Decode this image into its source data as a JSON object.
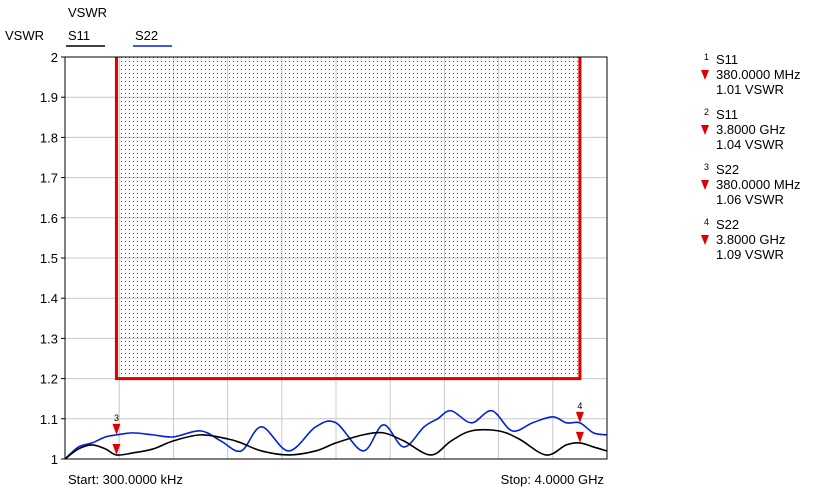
{
  "chart_data": {
    "type": "line",
    "title": "VSWR",
    "ylabel": "VSWR",
    "xlim_hz": [
      300000,
      4000000000
    ],
    "ylim": [
      1,
      2
    ],
    "yticks": [
      1,
      1.1,
      1.2,
      1.3,
      1.4,
      1.5,
      1.6,
      1.7,
      1.8,
      1.9,
      2
    ],
    "ytick_labels": [
      "1",
      "1.1",
      "1.2",
      "1.3",
      "1.4",
      "1.5",
      "1.6",
      "1.7",
      "1.8",
      "1.9",
      "2"
    ],
    "grid": true,
    "start_label": "Start: 300.0000 kHz",
    "stop_label": "Stop: 4.0000 GHz",
    "series": [
      {
        "name": "S11",
        "color": "#000000",
        "x_ghz": [
          0.0003,
          0.1,
          0.2,
          0.3,
          0.38,
          0.5,
          0.65,
          0.8,
          1.0,
          1.2,
          1.3,
          1.45,
          1.65,
          1.85,
          2.0,
          2.2,
          2.35,
          2.5,
          2.7,
          2.85,
          3.0,
          3.2,
          3.35,
          3.55,
          3.7,
          3.8,
          3.9,
          4.0
        ],
        "values": [
          1.0,
          1.025,
          1.035,
          1.025,
          1.01,
          1.015,
          1.025,
          1.045,
          1.06,
          1.05,
          1.04,
          1.02,
          1.01,
          1.02,
          1.04,
          1.06,
          1.065,
          1.045,
          1.01,
          1.045,
          1.07,
          1.07,
          1.05,
          1.01,
          1.035,
          1.04,
          1.03,
          1.02
        ]
      },
      {
        "name": "S22",
        "color": "#0020dd",
        "x_ghz": [
          0.0003,
          0.1,
          0.2,
          0.3,
          0.38,
          0.5,
          0.65,
          0.8,
          1.0,
          1.15,
          1.3,
          1.45,
          1.65,
          1.85,
          2.0,
          2.2,
          2.35,
          2.5,
          2.65,
          2.75,
          2.85,
          3.0,
          3.15,
          3.3,
          3.45,
          3.6,
          3.7,
          3.8,
          3.9,
          4.0
        ],
        "values": [
          1.0,
          1.03,
          1.04,
          1.055,
          1.06,
          1.065,
          1.06,
          1.055,
          1.07,
          1.045,
          1.02,
          1.08,
          1.02,
          1.08,
          1.09,
          1.02,
          1.085,
          1.03,
          1.08,
          1.1,
          1.12,
          1.09,
          1.12,
          1.07,
          1.09,
          1.105,
          1.09,
          1.09,
          1.065,
          1.06
        ]
      }
    ],
    "limit_region": {
      "color": "#e00000",
      "x_ghz": [
        0.38,
        3.8
      ],
      "y_min": 1.2,
      "y_max": 2
    },
    "markers": [
      {
        "num": "1",
        "trace": "S11",
        "freq": "380.0000 MHz",
        "value": "1.01 VSWR",
        "x_ghz": 0.38,
        "y": 1.01
      },
      {
        "num": "2",
        "trace": "S11",
        "freq": "3.8000 GHz",
        "value": "1.04 VSWR",
        "x_ghz": 3.8,
        "y": 1.04
      },
      {
        "num": "3",
        "trace": "S22",
        "freq": "380.0000 MHz",
        "value": "1.06 VSWR",
        "x_ghz": 0.38,
        "y": 1.06
      },
      {
        "num": "4",
        "trace": "S22",
        "freq": "3.8000 GHz",
        "value": "1.09 VSWR",
        "x_ghz": 3.8,
        "y": 1.09
      }
    ]
  }
}
